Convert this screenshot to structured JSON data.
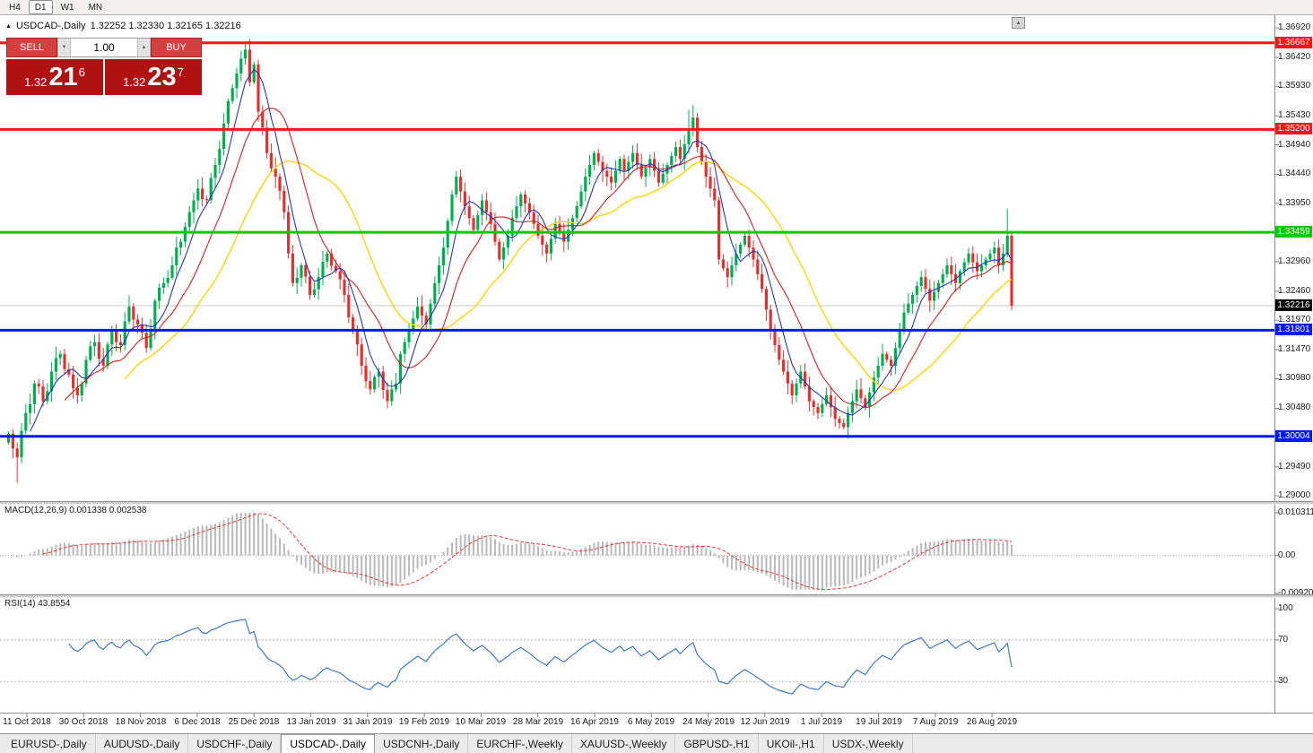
{
  "ui": {
    "timeframes": [
      {
        "label": "H4",
        "active": false
      },
      {
        "label": "D1",
        "active": true
      },
      {
        "label": "W1",
        "active": false
      },
      {
        "label": "MN",
        "active": false
      }
    ],
    "chart_title": {
      "triangle_icon": "▲",
      "symbol": "USDCAD-,Daily",
      "ohlc": "1.32252 1.32330 1.32165 1.32216"
    },
    "trade_panel": {
      "sell_label": "SELL",
      "buy_label": "BUY",
      "volume": "1.00",
      "down_glyph": "▼",
      "up_glyph": "▲",
      "sell_price": {
        "main": "1.32",
        "big": "21",
        "sup": "6"
      },
      "buy_price": {
        "main": "1.32",
        "big": "23",
        "sup": "7"
      }
    },
    "macd_label": "MACD(12,26,9) 0.001338 0.002538",
    "rsi_label": "RSI(14) 43.8554",
    "shift_marker_glyph": "▲",
    "tabs": [
      {
        "label": "EURUSD-,Daily",
        "active": false
      },
      {
        "label": "AUDUSD-,Daily",
        "active": false
      },
      {
        "label": "USDCHF-,Daily",
        "active": false
      },
      {
        "label": "USDCAD-,Daily",
        "active": true
      },
      {
        "label": "USDCNH-,Daily",
        "active": false
      },
      {
        "label": "EURCHF-,Weekly",
        "active": false
      },
      {
        "label": "XAUUSD-,Weekly",
        "active": false
      },
      {
        "label": "GBPUSD-,H1",
        "active": false
      },
      {
        "label": "UKOil-,H1",
        "active": false
      },
      {
        "label": "USDX-,Weekly",
        "active": false
      }
    ]
  },
  "chart_data": {
    "type": "candlestick",
    "symbol": "USDCAD-,Daily",
    "timeframe": "Daily",
    "ohlc_current": {
      "open": 1.32252,
      "high": 1.3233,
      "low": 1.32165,
      "close": 1.32216
    },
    "current_price": 1.32216,
    "current_price_label": "1.32216",
    "colors": {
      "up": "#00b050",
      "down": "#e03232",
      "current_line": "#c8c8c8",
      "current_tag_bg": "#000000",
      "ma_yellow": "#ffd400",
      "ma_red": "#d02020",
      "ma_blue": "#2637b8"
    },
    "y_axis": {
      "min": 1.29,
      "max": 1.3692,
      "tick_labels": [
        "1.36920",
        "1.36420",
        "1.35930",
        "1.35430",
        "1.34940",
        "1.34440",
        "1.33950",
        "1.32960",
        "1.32460",
        "1.31970",
        "1.31470",
        "1.30980",
        "1.30480",
        "1.29490",
        "1.29000"
      ]
    },
    "x_labels": [
      "11 Oct 2018",
      "30 Oct 2018",
      "18 Nov 2018",
      "6 Dec 2018",
      "25 Dec 2018",
      "13 Jan 2019",
      "31 Jan 2019",
      "19 Feb 2019",
      "10 Mar 2019",
      "28 Mar 2019",
      "16 Apr 2019",
      "6 May 2019",
      "24 May 2019",
      "12 Jun 2019",
      "1 Jul 2019",
      "19 Jul 2019",
      "7 Aug 2019",
      "26 Aug 2019"
    ],
    "horizontal_lines": [
      {
        "value": 1.36667,
        "label": "1.36667",
        "color": "#ff1414",
        "thickness": 3
      },
      {
        "value": 1.352,
        "label": "1.35200",
        "color": "#ff1414",
        "thickness": 3
      },
      {
        "value": 1.33459,
        "label": "1.33459",
        "color": "#00cc00",
        "thickness": 3
      },
      {
        "value": 1.31801,
        "label": "1.31801",
        "color": "#0019ff",
        "thickness": 3
      },
      {
        "value": 1.30004,
        "label": "1.30004",
        "color": "#0019ff",
        "thickness": 3
      }
    ],
    "moving_averages": [
      {
        "period": 28,
        "color": "#ffd400"
      },
      {
        "period": 14,
        "color": "#d02020"
      },
      {
        "period": 6,
        "color": "#2637b8"
      }
    ],
    "macd": {
      "fast": 12,
      "slow": 26,
      "signal": 9,
      "axis": {
        "max": 0.010311,
        "min": -0.009203
      },
      "axis_labels": [
        {
          "v": 0.010311,
          "t": "0.010311"
        },
        {
          "v": 0,
          "t": "0.00"
        },
        {
          "v": -0.009203,
          "t": "-0.009203"
        }
      ],
      "hist_color": "#b9b9b9",
      "signal_color": "#e23a3a"
    },
    "rsi": {
      "period": 14,
      "levels": [
        70,
        30
      ],
      "color": "#3f7abf",
      "axis_labels": [
        {
          "v": 100,
          "t": "100"
        },
        {
          "v": 70,
          "t": "70"
        },
        {
          "v": 30,
          "t": "30"
        }
      ]
    },
    "closes": [
      1.3005,
      1.298,
      1.2965,
      1.301,
      1.304,
      1.3055,
      1.309,
      1.3085,
      1.306,
      1.3077,
      1.311,
      1.3133,
      1.314,
      1.3114,
      1.3105,
      1.3082,
      1.307,
      1.309,
      1.313,
      1.3153,
      1.316,
      1.3132,
      1.312,
      1.3156,
      1.318,
      1.316,
      1.3155,
      1.3195,
      1.322,
      1.3198,
      1.319,
      1.3176,
      1.315,
      1.3182,
      1.323,
      1.3252,
      1.326,
      1.3269,
      1.329,
      1.332,
      1.333,
      1.3355,
      1.338,
      1.34,
      1.342,
      1.3402,
      1.34,
      1.3438,
      1.346,
      1.3487,
      1.353,
      1.3568,
      1.359,
      1.3615,
      1.364,
      1.3655,
      1.36,
      1.363,
      1.355,
      1.3523,
      1.348,
      1.3454,
      1.344,
      1.3416,
      1.338,
      1.331,
      1.326,
      1.3269,
      1.329,
      1.3271,
      1.324,
      1.3249,
      1.327,
      1.3296,
      1.331,
      1.3289,
      1.328,
      1.3266,
      1.324,
      1.3202,
      1.318,
      1.3156,
      1.312,
      1.3094,
      1.308,
      1.3101,
      1.311,
      1.3079,
      1.306,
      1.308,
      1.309,
      1.314,
      1.316,
      1.318,
      1.32,
      1.322,
      1.3205,
      1.319,
      1.3225,
      1.326,
      1.329,
      1.332,
      1.3365,
      1.341,
      1.344,
      1.3415,
      1.339,
      1.337,
      1.335,
      1.3375,
      1.34,
      1.338,
      1.336,
      1.333,
      1.33,
      1.332,
      1.334,
      1.337,
      1.339,
      1.341,
      1.3395,
      1.338,
      1.336,
      1.334,
      1.3325,
      1.331,
      1.3335,
      1.336,
      1.3345,
      1.333,
      1.335,
      1.337,
      1.339,
      1.3415,
      1.344,
      1.346,
      1.348,
      1.3465,
      1.345,
      1.344,
      1.343,
      1.345,
      1.347,
      1.345,
      1.3465,
      1.348,
      1.346,
      1.344,
      1.3455,
      1.347,
      1.345,
      1.343,
      1.3445,
      1.346,
      1.3475,
      1.349,
      1.347,
      1.3495,
      1.352,
      1.354,
      1.349,
      1.3465,
      1.344,
      1.342,
      1.34,
      1.33,
      1.3285,
      1.327,
      1.329,
      1.331,
      1.3325,
      1.334,
      1.332,
      1.33,
      1.3275,
      1.325,
      1.3215,
      1.318,
      1.3155,
      1.313,
      1.311,
      1.309,
      1.307,
      1.309,
      1.311,
      1.3085,
      1.306,
      1.305,
      1.304,
      1.3055,
      1.307,
      1.305,
      1.303,
      1.3023,
      1.3016,
      1.304,
      1.306,
      1.308,
      1.3065,
      1.305,
      1.3075,
      1.31,
      1.312,
      1.314,
      1.313,
      1.312,
      1.315,
      1.318,
      1.321,
      1.3225,
      1.324,
      1.3255,
      1.327,
      1.325,
      1.323,
      1.3245,
      1.326,
      1.3275,
      1.329,
      1.3275,
      1.326,
      1.328,
      1.3295,
      1.331,
      1.3295,
      1.328,
      1.329,
      1.33,
      1.331,
      1.332,
      1.329,
      1.331,
      1.334,
      1.32216
    ],
    "wick_overrides": {
      "2": {
        "low": 1.2922
      },
      "55": {
        "high": 1.3666
      },
      "158": {
        "high": 1.3553
      },
      "159": {
        "high": 1.3561
      },
      "194": {
        "low": 1.3012
      },
      "232": {
        "high": 1.3386
      },
      "233": {
        "low": 1.3214
      }
    }
  }
}
